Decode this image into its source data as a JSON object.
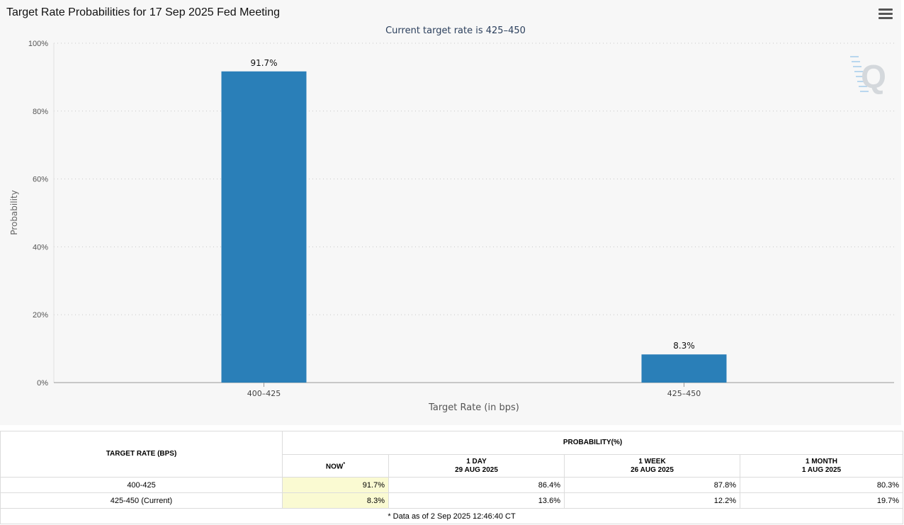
{
  "chart_data": {
    "type": "bar",
    "title": "Target Rate Probabilities for 17 Sep 2025 Fed Meeting",
    "subtitle": "Current target rate is 425–450",
    "xlabel": "Target Rate (in bps)",
    "ylabel": "Probability",
    "categories": [
      "400–425",
      "425–450"
    ],
    "values": [
      91.7,
      8.3
    ],
    "data_labels": [
      "91.7%",
      "8.3%"
    ],
    "ylim": [
      0,
      100
    ],
    "yticks": [
      "0%",
      "20%",
      "40%",
      "60%",
      "80%",
      "100%"
    ],
    "ytick_values": [
      0,
      20,
      40,
      60,
      80,
      100
    ],
    "grid": true,
    "bar_color": "#2a7fb8",
    "legend": false
  },
  "logo_mark": "Q",
  "table": {
    "target_rate_header": "TARGET RATE (BPS)",
    "probability_header": "PROBABILITY(%)",
    "columns": [
      {
        "label": "NOW",
        "marker": "*",
        "date": ""
      },
      {
        "label": "1 DAY",
        "date": "29 AUG 2025"
      },
      {
        "label": "1 WEEK",
        "date": "26 AUG 2025"
      },
      {
        "label": "1 MONTH",
        "date": "1 AUG 2025"
      }
    ],
    "rows": [
      {
        "rate": "400-425",
        "now": "91.7%",
        "day": "86.4%",
        "week": "87.8%",
        "month": "80.3%"
      },
      {
        "rate": "425-450 (Current)",
        "now": "8.3%",
        "day": "13.6%",
        "week": "12.2%",
        "month": "19.7%"
      }
    ],
    "footnote": "* Data as of 2 Sep 2025 12:46:40 CT"
  }
}
